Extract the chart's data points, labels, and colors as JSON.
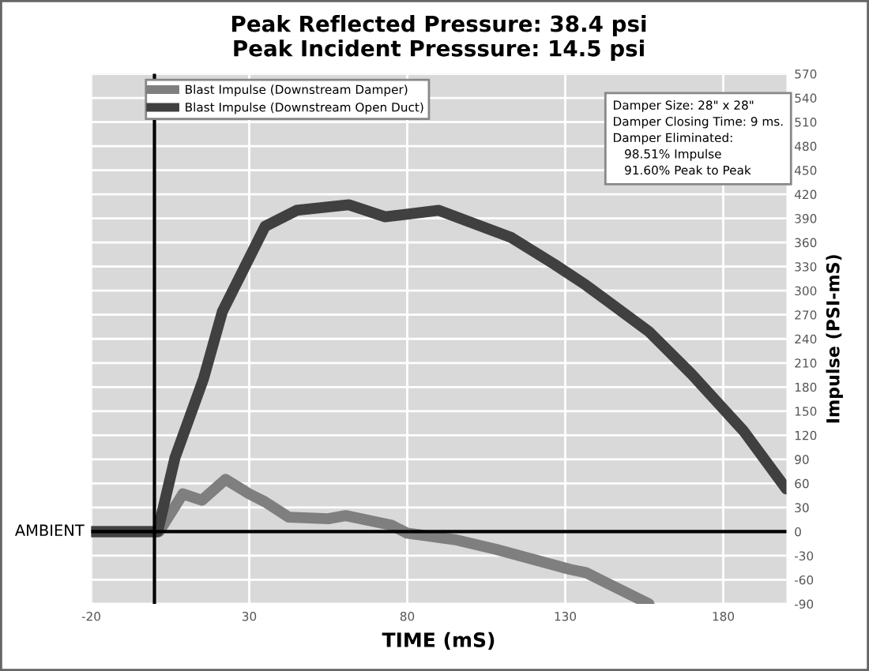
{
  "chart_data": {
    "type": "line",
    "title": "Peak Reflected Pressure: 38.4 psi\nPeak Incident Presssure: 14.5 psi",
    "xlabel": "TIME (mS)",
    "ylabel": "Impulse (PSI-mS)",
    "xlim": [
      -20,
      200
    ],
    "xticks": [
      -20,
      30,
      80,
      130,
      180
    ],
    "ylim": [
      -90,
      570
    ],
    "yticks": [
      -90,
      -60,
      -30,
      0,
      30,
      60,
      90,
      120,
      150,
      180,
      210,
      240,
      270,
      300,
      330,
      360,
      390,
      420,
      450,
      480,
      510,
      540,
      570
    ],
    "grid": true,
    "legend": "top left",
    "ref_lines": [
      {
        "axis": "x",
        "value": 0,
        "color": "#000000"
      },
      {
        "axis": "y",
        "value": 0,
        "label": "AMBIENT",
        "color": "#000000"
      }
    ],
    "annotations": [
      "Damper Size: 28\" x 28\"\nDamper Closing Time: 9 ms.\nDamper Eliminated:\n   98.51% Impulse\n   91.60% Peak to Peak"
    ],
    "series": [
      {
        "name": "Blast Impulse (Downstream Damper)",
        "color": "#7f7f7f",
        "x": [
          -20,
          1.5,
          9,
          15,
          22.5,
          30,
          35,
          42.5,
          55,
          60.5,
          75,
          80,
          95,
          108,
          131.5,
          136.5,
          156.5
        ],
        "values": [
          0,
          0,
          47,
          39,
          65,
          47,
          37,
          18,
          16,
          20,
          8,
          -2,
          -10,
          -22,
          -47,
          -51,
          -90
        ]
      },
      {
        "name": "Blast Impulse (Downstream Open Duct)",
        "color": "#404040",
        "x": [
          -20,
          1,
          6.5,
          15.5,
          21.5,
          35,
          45,
          61.5,
          73,
          90,
          113,
          126.5,
          136.5,
          156.5,
          170,
          186.5,
          200
        ],
        "values": [
          0,
          0,
          92,
          190,
          274,
          380,
          400,
          407,
          392,
          400,
          366,
          333,
          307,
          249,
          196,
          125,
          53
        ]
      }
    ]
  }
}
